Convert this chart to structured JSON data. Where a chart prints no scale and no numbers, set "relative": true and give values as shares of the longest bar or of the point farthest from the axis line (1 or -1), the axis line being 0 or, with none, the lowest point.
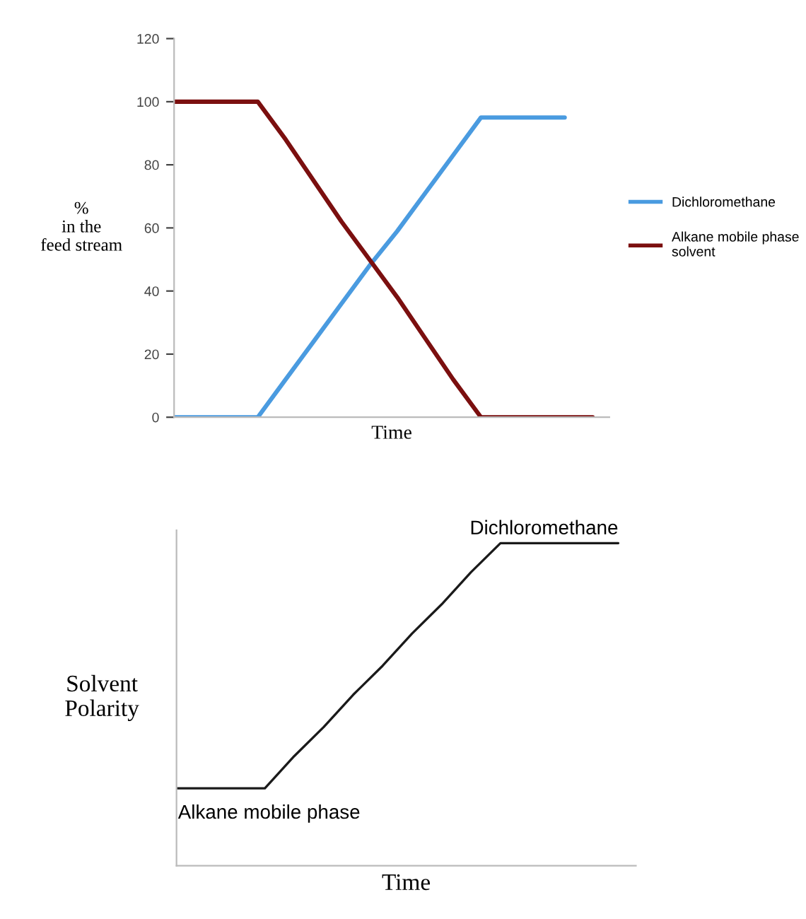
{
  "chart_data": [
    {
      "type": "line",
      "xlabel": "Time",
      "ylabel": "%\nin the\nfeed stream",
      "categories": [
        null,
        null,
        null,
        null,
        null,
        null,
        null,
        null,
        null,
        null,
        null,
        null,
        null,
        null,
        null,
        null
      ],
      "series": [
        {
          "name": "Dichloromethane",
          "color": "#4a9be0",
          "values": [
            0,
            0,
            0,
            0,
            12,
            24,
            36,
            48,
            59,
            71,
            83,
            95,
            95,
            95,
            95,
            null
          ]
        },
        {
          "name": "Alkane mobile phase solvent",
          "color": "#7b0f0f",
          "values": [
            100,
            100,
            100,
            100,
            88,
            75,
            62,
            50,
            38,
            25,
            12,
            0,
            0,
            0,
            0,
            0
          ]
        }
      ],
      "ylim": [
        0,
        120
      ],
      "yticks": [
        0,
        20,
        40,
        60,
        80,
        100,
        120
      ],
      "tick_labels": "y",
      "grid": false,
      "legend": "right",
      "marker": "none",
      "line_style": "solid"
    },
    {
      "type": "line",
      "relative": true,
      "xlabel": "Time",
      "ylabel": "Solvent\nPolarity",
      "categories": [
        null,
        null,
        null,
        null,
        null,
        null,
        null,
        null,
        null,
        null,
        null,
        null,
        null,
        null,
        null,
        null
      ],
      "series": [
        {
          "color": "#1a1a1a",
          "values": [
            0.24,
            0.24,
            0.24,
            0.24,
            0.34,
            0.43,
            0.53,
            0.62,
            0.72,
            0.81,
            0.91,
            1,
            1,
            1,
            1,
            1
          ]
        }
      ],
      "annotations": [
        "Dichloromethane",
        "Alkane mobile phase"
      ],
      "tick_labels": false,
      "grid": false,
      "legend": false,
      "marker": "none",
      "line_style": "solid"
    }
  ]
}
